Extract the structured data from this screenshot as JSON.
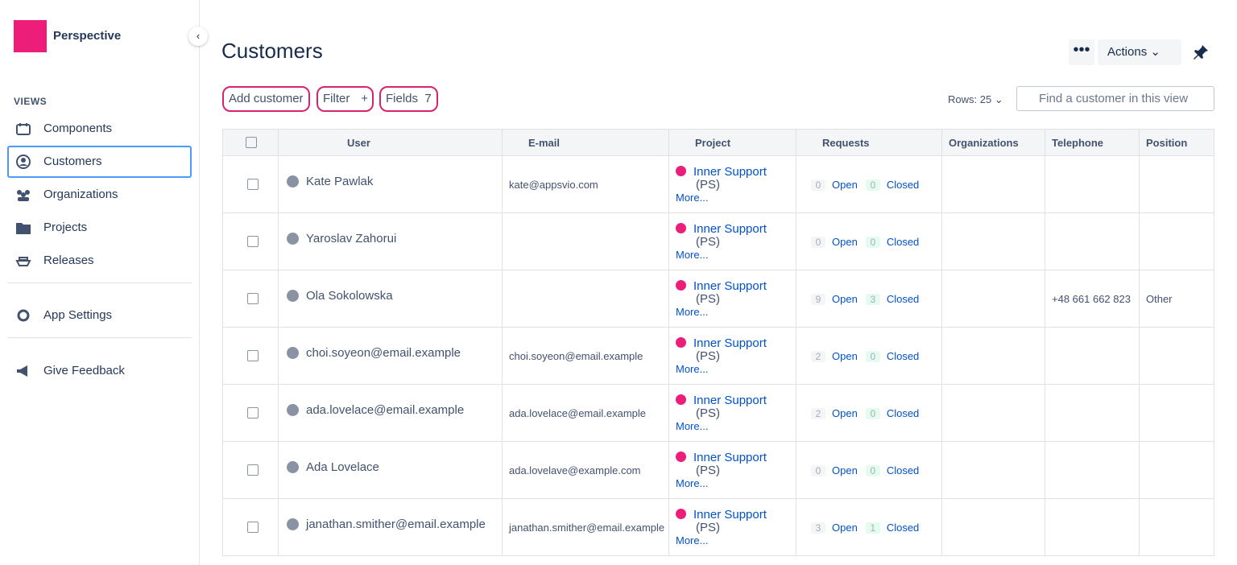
{
  "sidebar": {
    "app_name": "Perspective",
    "section": "VIEWS",
    "nav": [
      "Components",
      "Customers",
      "Organizations",
      "Projects",
      "Releases"
    ],
    "settings": "App Settings",
    "feedback": "Give Feedback"
  },
  "header": {
    "title": "Customers",
    "actions": "Actions"
  },
  "toolbar": {
    "add": "Add customer",
    "filter": "Filter",
    "fields": "Fields",
    "fields_count": 7,
    "rows_label": "Rows:",
    "rows_per_page": 25,
    "search_placeholder": "Find a customer in this view"
  },
  "table": {
    "columns": [
      "User",
      "E-mail",
      "Project",
      "Requests",
      "Organizations",
      "Telephone",
      "Position"
    ],
    "more": "More...",
    "open_label": "Open",
    "closed_label": "Closed",
    "rows": [
      {
        "user": "Kate Pawlak",
        "email": "kate@appsvio.com",
        "project": "Inner Support",
        "project_code": "(PS)",
        "open": 0,
        "closed": 0
      },
      {
        "user": "Yaroslav Zahorui",
        "project": "Inner Support",
        "project_code": "(PS)",
        "open": 0,
        "closed": 0
      },
      {
        "user": "Ola Sokolowska",
        "project": "Inner Support",
        "project_code": "(PS)",
        "open": 9,
        "closed": 3,
        "telephone": "+48 661 662 823",
        "position": "Other"
      },
      {
        "user": "choi.soyeon@email.example",
        "email": "choi.soyeon@email.example",
        "project": "Inner Support",
        "project_code": "(PS)",
        "open": 2,
        "closed": 0
      },
      {
        "user": "ada.lovelace@email.example",
        "email": "ada.lovelace@email.example",
        "project": "Inner Support",
        "project_code": "(PS)",
        "open": 2,
        "closed": 0
      },
      {
        "user": "Ada Lovelace",
        "email": "ada.lovelave@example.com",
        "project": "Inner Support",
        "project_code": "(PS)",
        "open": 0,
        "closed": 0
      },
      {
        "user": "janathan.smither@email.example",
        "email": "janathan.smither@email.example",
        "project": "Inner Support",
        "project_code": "(PS)",
        "open": 3,
        "closed": 1
      }
    ]
  }
}
